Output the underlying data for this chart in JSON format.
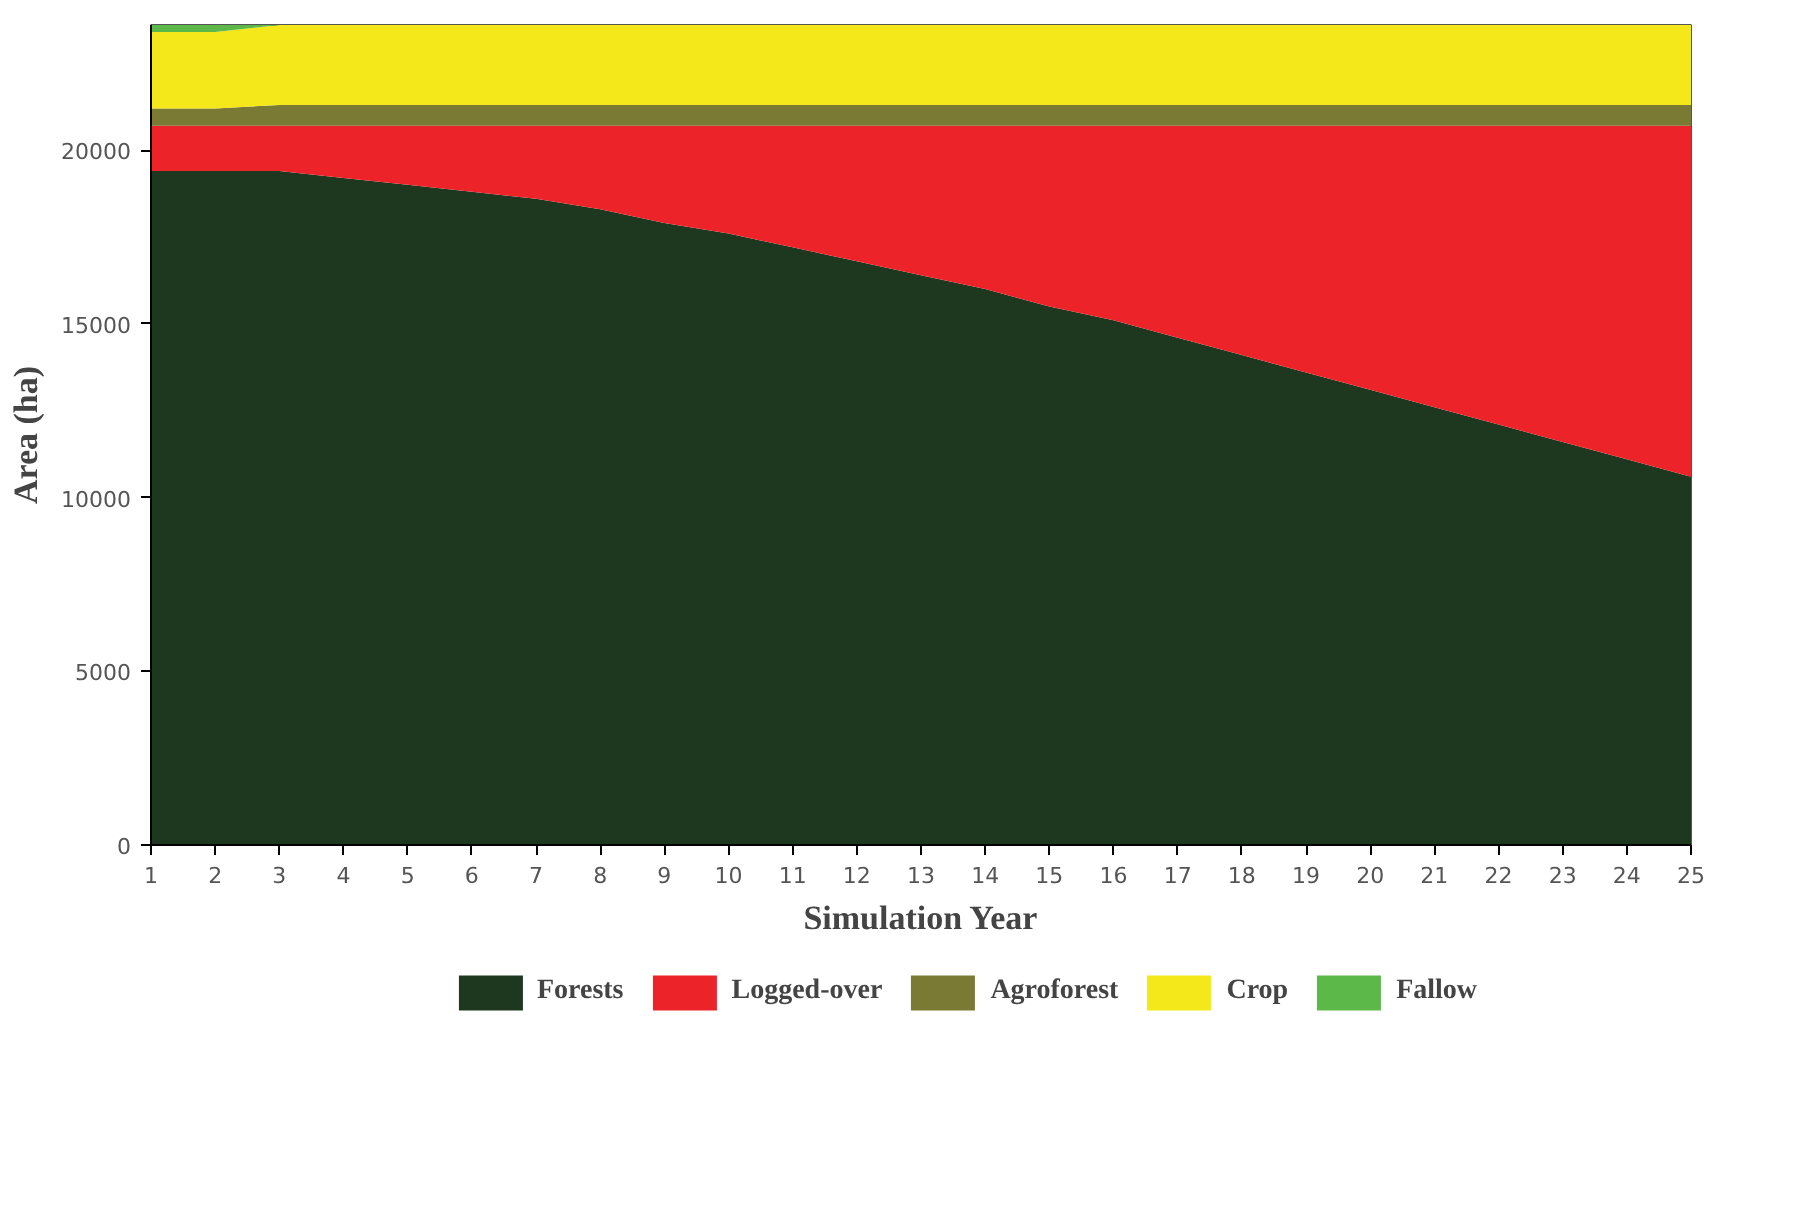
{
  "chart_data": {
    "type": "area",
    "stacked": true,
    "xlabel": "Simulation Year",
    "ylabel": "Area (ha)",
    "x": [
      1,
      2,
      3,
      4,
      5,
      6,
      7,
      8,
      9,
      10,
      11,
      12,
      13,
      14,
      15,
      16,
      17,
      18,
      19,
      20,
      21,
      22,
      23,
      24,
      25
    ],
    "xlim": [
      1,
      25
    ],
    "xticks": [
      1,
      2,
      3,
      4,
      5,
      6,
      7,
      8,
      9,
      10,
      11,
      12,
      13,
      14,
      15,
      16,
      17,
      18,
      19,
      20,
      21,
      22,
      23,
      24,
      25
    ],
    "ylim": [
      0,
      23600
    ],
    "yticks": [
      0,
      5000,
      10000,
      15000,
      20000
    ],
    "grid": false,
    "legend": "bottom",
    "series": [
      {
        "name": "Forests",
        "color": "#1e3820",
        "values": [
          19400,
          19400,
          19400,
          19200,
          19000,
          18800,
          18600,
          18300,
          17900,
          17600,
          17200,
          16800,
          16400,
          16000,
          15500,
          15100,
          14600,
          14100,
          13600,
          13100,
          12600,
          12100,
          11600,
          11100,
          10600
        ]
      },
      {
        "name": "Logged-over",
        "color": "#ec2328",
        "values": [
          1300,
          1300,
          1300,
          1500,
          1700,
          1900,
          2100,
          2400,
          2800,
          3100,
          3500,
          3900,
          4300,
          4700,
          5200,
          5600,
          6100,
          6600,
          7100,
          7600,
          8100,
          8600,
          9100,
          9600,
          10100
        ]
      },
      {
        "name": "Agroforest",
        "color": "#7a7a35",
        "values": [
          500,
          500,
          600,
          600,
          600,
          600,
          600,
          600,
          600,
          600,
          600,
          600,
          600,
          600,
          600,
          600,
          600,
          600,
          600,
          600,
          600,
          600,
          600,
          600,
          600
        ]
      },
      {
        "name": "Crop",
        "color": "#f4e81a",
        "values": [
          2200,
          2200,
          2300,
          2300,
          2300,
          2300,
          2300,
          2300,
          2300,
          2300,
          2300,
          2300,
          2300,
          2300,
          2300,
          2300,
          2300,
          2300,
          2300,
          2300,
          2300,
          2300,
          2300,
          2300,
          2300
        ]
      },
      {
        "name": "Fallow",
        "color": "#5cb848",
        "values": [
          200,
          200,
          0,
          0,
          0,
          0,
          0,
          0,
          0,
          0,
          0,
          0,
          0,
          0,
          0,
          0,
          0,
          0,
          0,
          0,
          0,
          0,
          0,
          0,
          0
        ]
      }
    ]
  }
}
